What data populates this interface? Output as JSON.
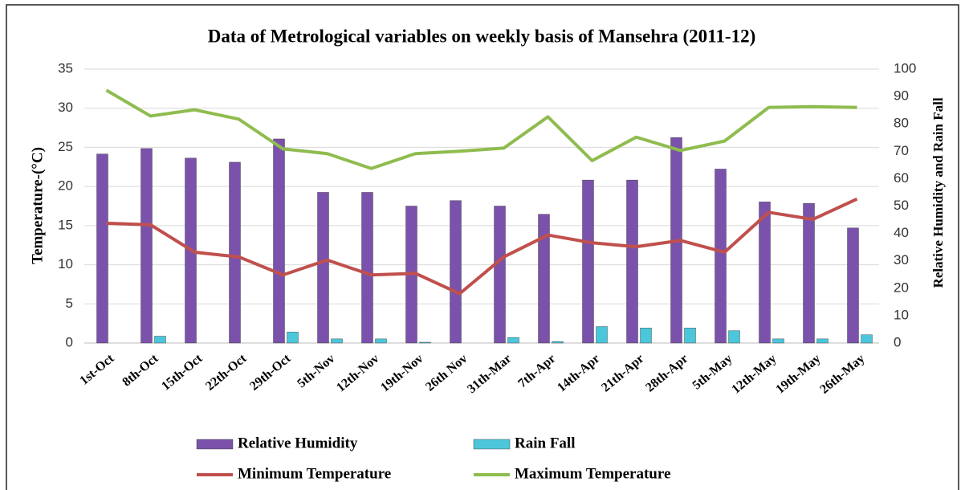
{
  "chart_data": {
    "type": "bar-line",
    "title": "Data of Metrological variables on weekly basis of Mansehra (2011-12)",
    "ylabel": "Temperature-(°C)",
    "y2label": "Relative Humidity and Rain Fall",
    "categories": [
      "1st-Oct",
      "8th-Oct",
      "15th-Oct",
      "22th-Oct",
      "29th-Oct",
      "5th-Nov",
      "12th-Nov",
      "19th-Nov",
      "26th Nov",
      "31th-Mar",
      "7th-Apr",
      "14th-Apr",
      "21th-Apr",
      "28th-Apr",
      "5th-May",
      "12th-May",
      "19th-May",
      "26th-May"
    ],
    "ylim": [
      0,
      35
    ],
    "yticks": [
      0,
      5,
      10,
      15,
      20,
      25,
      30,
      35
    ],
    "y2lim": [
      0,
      100
    ],
    "y2ticks": [
      0,
      10,
      20,
      30,
      40,
      50,
      60,
      70,
      80,
      90,
      100
    ],
    "grid": true,
    "series": [
      {
        "name": "Relative Humidity",
        "kind": "bar",
        "axis": "y2",
        "color": "#7b52ab",
        "values": [
          69,
          71,
          67.5,
          66,
          74.5,
          55,
          55,
          50,
          52,
          50,
          47,
          59.5,
          59.5,
          75,
          63.5,
          51.5,
          51,
          42
        ]
      },
      {
        "name": "Rain Fall",
        "kind": "bar",
        "axis": "y2",
        "color": "#4bc6da",
        "values": [
          0,
          2.5,
          0,
          0,
          4,
          1.5,
          1.5,
          0.3,
          0,
          2,
          0.5,
          6,
          5.5,
          5.5,
          4.5,
          1.5,
          1.5,
          3
        ]
      },
      {
        "name": "Minimum Temperature",
        "kind": "line",
        "color": "#c0504d",
        "values": [
          15.3,
          15.1,
          11.6,
          11,
          8.7,
          10.6,
          8.7,
          8.9,
          6.3,
          11,
          13.8,
          12.8,
          12.3,
          13.1,
          11.6,
          16.7,
          15.8,
          18.4
        ]
      },
      {
        "name": "Maximum Temperature",
        "kind": "line",
        "color": "#8fbc4f",
        "values": [
          32.3,
          29,
          29.8,
          28.6,
          24.8,
          24.2,
          22.3,
          24.2,
          24.5,
          24.9,
          28.9,
          23.3,
          26.3,
          24.6,
          25.8,
          30.1,
          30.2,
          30.1
        ]
      }
    ]
  }
}
